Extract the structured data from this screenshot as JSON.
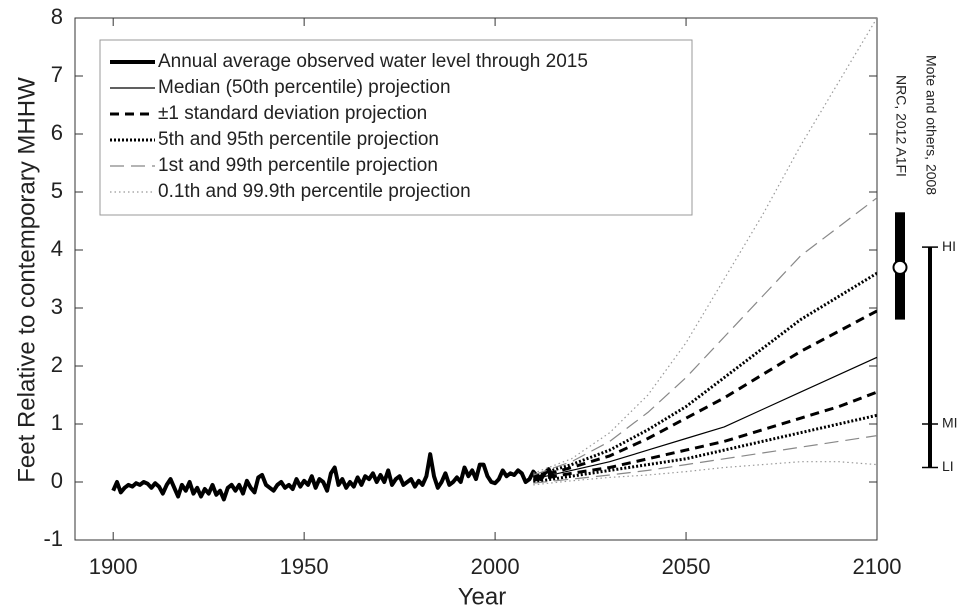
{
  "chart_data": {
    "type": "line",
    "xlabel": "Year",
    "ylabel": "Feet Relative to contemporary MHHW",
    "xlim": [
      1890,
      2100
    ],
    "ylim": [
      -1,
      8
    ],
    "xticks": [
      1900,
      1950,
      2000,
      2050,
      2100
    ],
    "yticks": [
      -1,
      0,
      1,
      2,
      3,
      4,
      5,
      6,
      7,
      8
    ],
    "grid": false,
    "legend": "upper-left",
    "projection_x": [
      2010,
      2020,
      2030,
      2040,
      2050,
      2060,
      2070,
      2080,
      2090,
      2100
    ],
    "series": [
      {
        "name": "Annual average observed water level through 2015",
        "color": "#000000",
        "width": 4,
        "dash": "none",
        "x": [
          1900,
          1901,
          1902,
          1903,
          1904,
          1905,
          1906,
          1907,
          1908,
          1909,
          1910,
          1911,
          1912,
          1913,
          1914,
          1915,
          1916,
          1917,
          1918,
          1919,
          1920,
          1921,
          1922,
          1923,
          1924,
          1925,
          1926,
          1927,
          1928,
          1929,
          1930,
          1931,
          1932,
          1933,
          1934,
          1935,
          1936,
          1937,
          1938,
          1939,
          1940,
          1941,
          1942,
          1943,
          1944,
          1945,
          1946,
          1947,
          1948,
          1949,
          1950,
          1951,
          1952,
          1953,
          1954,
          1955,
          1956,
          1957,
          1958,
          1959,
          1960,
          1961,
          1962,
          1963,
          1964,
          1965,
          1966,
          1967,
          1968,
          1969,
          1970,
          1971,
          1972,
          1973,
          1974,
          1975,
          1976,
          1977,
          1978,
          1979,
          1980,
          1981,
          1982,
          1983,
          1984,
          1985,
          1986,
          1987,
          1988,
          1989,
          1990,
          1991,
          1992,
          1993,
          1994,
          1995,
          1996,
          1997,
          1998,
          1999,
          2000,
          2001,
          2002,
          2003,
          2004,
          2005,
          2006,
          2007,
          2008,
          2009,
          2010,
          2011,
          2012,
          2013,
          2014,
          2015
        ],
        "values": [
          -0.15,
          0.0,
          -0.18,
          -0.1,
          -0.05,
          -0.08,
          -0.02,
          -0.05,
          0.0,
          -0.03,
          -0.1,
          -0.02,
          -0.08,
          -0.2,
          -0.05,
          0.05,
          -0.1,
          -0.25,
          -0.05,
          -0.15,
          0.0,
          -0.2,
          -0.1,
          -0.25,
          -0.12,
          -0.2,
          -0.05,
          -0.22,
          -0.15,
          -0.3,
          -0.1,
          -0.05,
          -0.15,
          -0.05,
          -0.2,
          0.02,
          -0.1,
          -0.18,
          0.08,
          0.12,
          -0.05,
          -0.1,
          -0.15,
          -0.05,
          0.0,
          -0.1,
          -0.05,
          -0.12,
          0.05,
          -0.08,
          0.02,
          -0.05,
          0.1,
          -0.1,
          0.05,
          0.0,
          -0.15,
          0.15,
          0.25,
          -0.05,
          0.05,
          -0.1,
          0.0,
          -0.08,
          0.08,
          -0.05,
          0.1,
          0.05,
          0.15,
          0.0,
          0.12,
          0.0,
          0.2,
          -0.05,
          0.05,
          0.1,
          -0.05,
          0.0,
          0.05,
          -0.08,
          0.02,
          -0.05,
          0.1,
          0.48,
          0.1,
          -0.1,
          0.0,
          0.15,
          -0.05,
          0.0,
          0.08,
          0.0,
          0.25,
          0.1,
          0.2,
          0.05,
          0.3,
          0.3,
          0.1,
          0.0,
          -0.02,
          0.05,
          0.2,
          0.1,
          0.15,
          0.12,
          0.2,
          0.15,
          0.0,
          0.05,
          0.18,
          0.1,
          0.05,
          0.15,
          0.22,
          0.1
        ]
      },
      {
        "name": "Median (50th percentile) projection",
        "color": "#000000",
        "width": 1.2,
        "dash": "none",
        "values": [
          0.05,
          0.2,
          0.35,
          0.55,
          0.75,
          0.95,
          1.25,
          1.55,
          1.85,
          2.15
        ]
      },
      {
        "name": "±1 standard deviation projection",
        "color": "#000000",
        "width": 3,
        "dash": "9,6",
        "upper": [
          0.07,
          0.25,
          0.45,
          0.75,
          1.1,
          1.45,
          1.85,
          2.25,
          2.6,
          2.95
        ],
        "lower": [
          0.03,
          0.15,
          0.25,
          0.4,
          0.55,
          0.7,
          0.9,
          1.1,
          1.3,
          1.55
        ]
      },
      {
        "name": "5th and 95th percentile projection",
        "color": "#000000",
        "width": 3,
        "dash": "2,2",
        "upper": [
          0.1,
          0.3,
          0.55,
          0.9,
          1.3,
          1.8,
          2.3,
          2.8,
          3.2,
          3.6
        ],
        "lower": [
          0.0,
          0.1,
          0.2,
          0.3,
          0.4,
          0.55,
          0.7,
          0.85,
          1.0,
          1.15
        ]
      },
      {
        "name": "1st and 99th percentile projection",
        "color": "#888888",
        "width": 1.2,
        "dash": "14,7",
        "upper": [
          0.12,
          0.35,
          0.7,
          1.2,
          1.8,
          2.5,
          3.2,
          3.9,
          4.4,
          4.9
        ],
        "lower": [
          -0.02,
          0.05,
          0.12,
          0.2,
          0.3,
          0.4,
          0.5,
          0.6,
          0.7,
          0.8
        ]
      },
      {
        "name": "0.1th and 99.9th percentile projection",
        "color": "#999999",
        "width": 1.2,
        "dash": "1.5,3",
        "upper": [
          0.15,
          0.4,
          0.85,
          1.5,
          2.4,
          3.5,
          4.6,
          5.8,
          6.9,
          8.0
        ],
        "lower": [
          -0.05,
          0.02,
          0.08,
          0.12,
          0.18,
          0.25,
          0.3,
          0.35,
          0.35,
          0.3
        ]
      }
    ],
    "nrc": {
      "label": "NRC, 2012 A1FI",
      "low": 2.8,
      "high": 4.65,
      "central": 3.7
    },
    "mote": {
      "label": "Mote and others, 2008",
      "marks": [
        {
          "label": "LI",
          "value": 0.25
        },
        {
          "label": "MI",
          "value": 1.0
        },
        {
          "label": "HI",
          "value": 4.05
        }
      ]
    }
  }
}
